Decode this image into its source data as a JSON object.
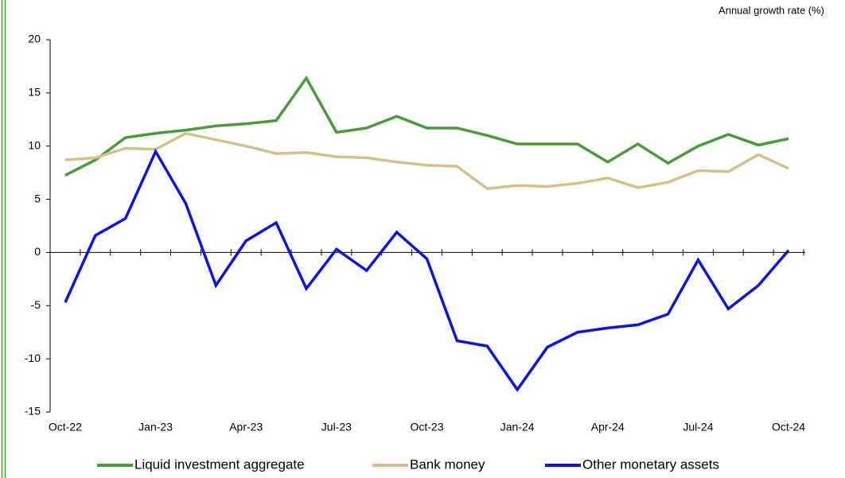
{
  "chart_data": {
    "type": "line",
    "y_axis_label": "Annual growth rate (%)",
    "categories": [
      "Oct-22",
      null,
      null,
      "Jan-23",
      null,
      null,
      "Apr-23",
      null,
      null,
      "Jul-23",
      null,
      null,
      "Oct-23",
      null,
      null,
      "Jan-24",
      null,
      null,
      "Apr-24",
      null,
      null,
      "Jul-24",
      null,
      null,
      "Oct-24"
    ],
    "series": [
      {
        "name": "Liquid investment aggregate",
        "color": "#4a9a3c",
        "values": [
          7.25,
          8.7,
          10.8,
          11.2,
          11.5,
          11.9,
          12.1,
          12.4,
          16.4,
          11.3,
          11.7,
          12.8,
          11.7,
          11.7,
          11.0,
          10.2,
          10.2,
          10.2,
          8.5,
          10.2,
          8.4,
          10.0,
          11.1,
          10.1,
          10.7
        ]
      },
      {
        "name": "Bank money",
        "color": "#d4c08a",
        "values": [
          8.7,
          8.9,
          9.8,
          9.7,
          11.2,
          10.6,
          10.0,
          9.3,
          9.4,
          9.0,
          8.9,
          8.5,
          8.2,
          8.1,
          6.0,
          6.3,
          6.2,
          6.5,
          7.0,
          6.1,
          6.6,
          7.7,
          7.6,
          9.2,
          7.9
        ]
      },
      {
        "name": "Other monetary assets",
        "color": "#0a14e6",
        "values": [
          -4.7,
          1.6,
          3.2,
          9.5,
          4.6,
          -3.1,
          1.1,
          2.8,
          -3.4,
          0.3,
          -1.7,
          1.9,
          -0.6,
          -8.3,
          -8.8,
          -12.9,
          -8.9,
          -7.5,
          -7.1,
          -6.8,
          -5.8,
          -0.7,
          -5.3,
          -3.1,
          0.2
        ]
      }
    ],
    "ylim": [
      -15,
      20
    ],
    "yticks": [
      -15,
      -10,
      -5,
      0,
      5,
      10,
      15,
      20
    ],
    "grid": false,
    "legend": "bottom"
  }
}
